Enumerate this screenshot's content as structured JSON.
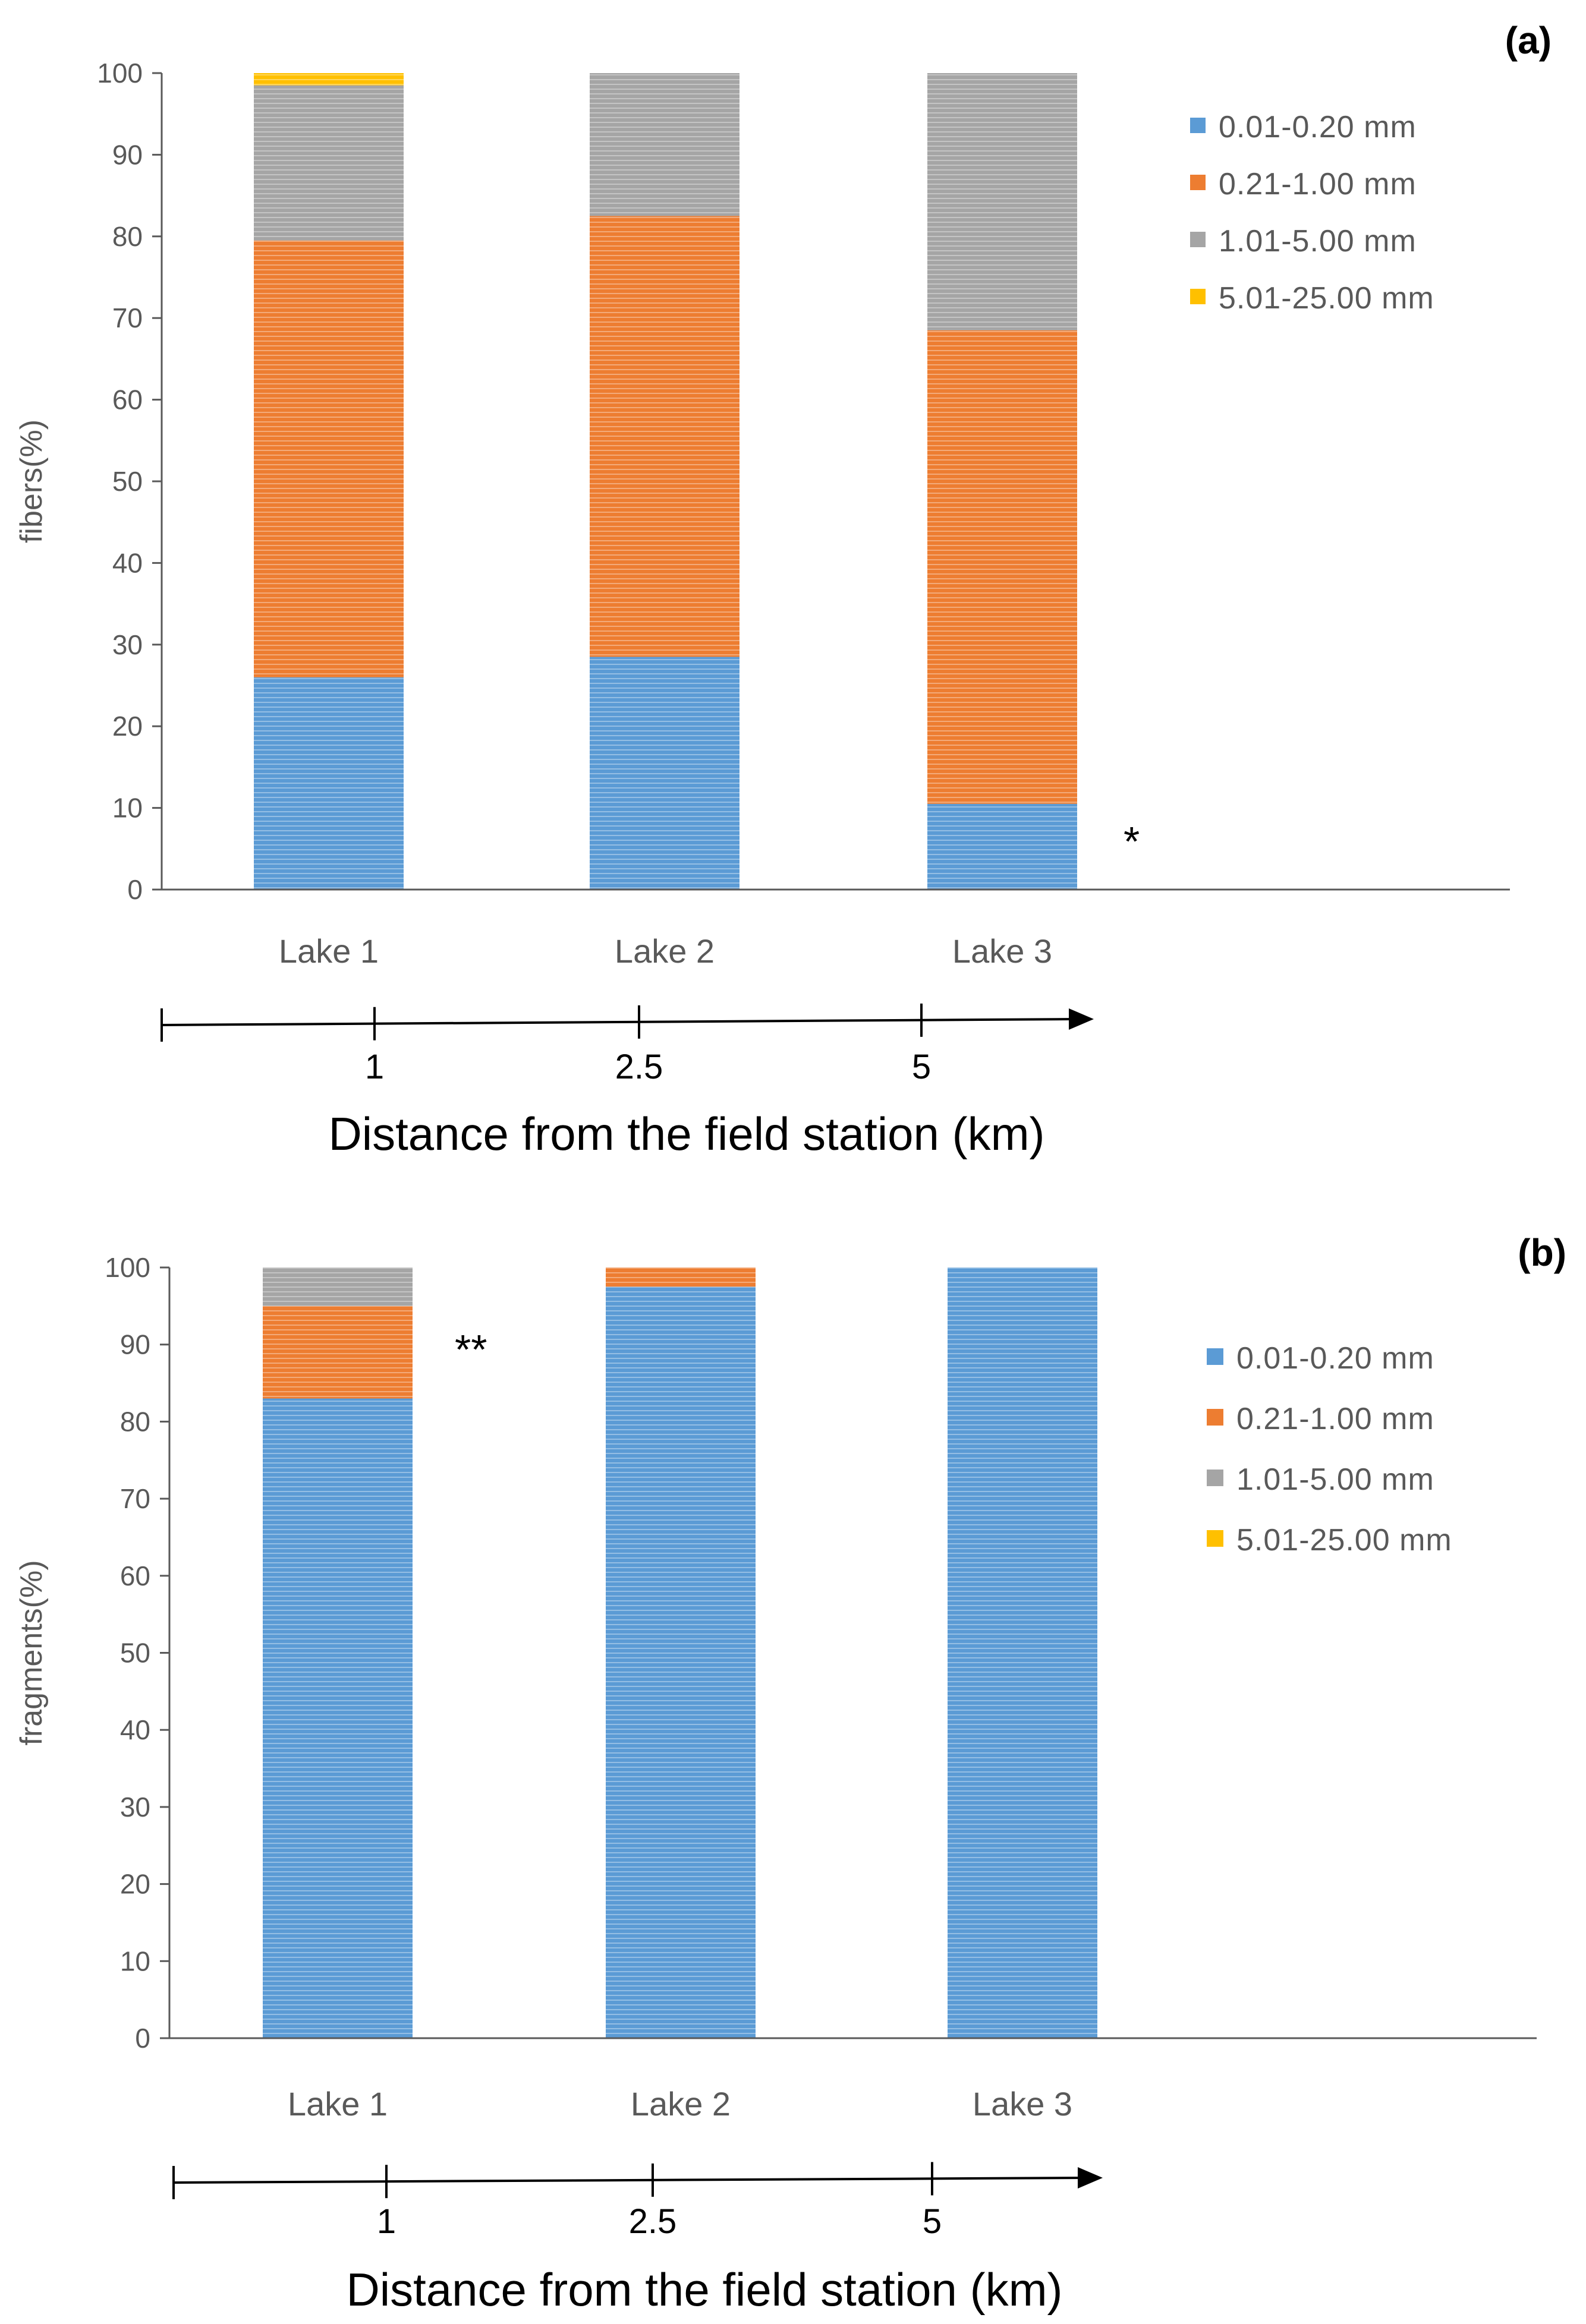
{
  "legend": {
    "items": [
      "0.01-0.20 mm",
      "0.21-1.00 mm",
      "1.01-5.00 mm",
      "5.01-25.00 mm"
    ]
  },
  "series_colors": [
    "#5B9BD5",
    "#ED7D31",
    "#A5A5A5",
    "#FFC000"
  ],
  "chart_data": [
    {
      "type": "bar",
      "stacked": true,
      "panel_label": "(a)",
      "ylabel": "fibers(%)",
      "ylim": [
        0,
        100
      ],
      "yticks": [
        0,
        10,
        20,
        30,
        40,
        50,
        60,
        70,
        80,
        90,
        100
      ],
      "categories": [
        "Lake 1",
        "Lake 2",
        "Lake 3"
      ],
      "series": [
        {
          "name": "0.01-0.20 mm",
          "values": [
            26,
            28.5,
            10.5
          ]
        },
        {
          "name": "0.21-1.00 mm",
          "values": [
            53.5,
            54,
            58
          ]
        },
        {
          "name": "1.01-5.00 mm",
          "values": [
            19,
            17.5,
            31.5
          ]
        },
        {
          "name": "5.01-25.00 mm",
          "values": [
            1.5,
            0,
            0
          ]
        }
      ],
      "annotation": {
        "text": "*",
        "category": "Lake 3"
      },
      "distance_axis": {
        "title": "Distance from the field station (km)",
        "ticks": [
          "1",
          "2.5",
          "5"
        ]
      }
    },
    {
      "type": "bar",
      "stacked": true,
      "panel_label": "(b)",
      "ylabel": "fragments(%)",
      "ylim": [
        0,
        100
      ],
      "yticks": [
        0,
        10,
        20,
        30,
        40,
        50,
        60,
        70,
        80,
        90,
        100
      ],
      "categories": [
        "Lake 1",
        "Lake 2",
        "Lake 3"
      ],
      "series": [
        {
          "name": "0.01-0.20 mm",
          "values": [
            83,
            97.5,
            100
          ]
        },
        {
          "name": "0.21-1.00 mm",
          "values": [
            12,
            2.5,
            0
          ]
        },
        {
          "name": "1.01-5.00 mm",
          "values": [
            5,
            0,
            0
          ]
        },
        {
          "name": "5.01-25.00 mm",
          "values": [
            0,
            0,
            0
          ]
        }
      ],
      "annotation": {
        "text": "**",
        "category": "Lake 1"
      },
      "distance_axis": {
        "title": "Distance from the field station (km)",
        "ticks": [
          "1",
          "2.5",
          "5"
        ]
      }
    }
  ]
}
